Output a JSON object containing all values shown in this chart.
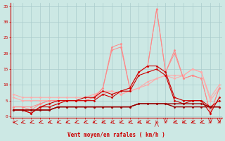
{
  "xlabel": "Vent moyen/en rafales ( km/h )",
  "bg_color": "#cce8e4",
  "grid_color": "#aacccc",
  "x_ticks": [
    0,
    1,
    2,
    3,
    4,
    5,
    6,
    7,
    8,
    9,
    10,
    11,
    12,
    13,
    14,
    15,
    16,
    17,
    18,
    19,
    20,
    21,
    22,
    23
  ],
  "y_ticks": [
    0,
    5,
    10,
    15,
    20,
    25,
    30,
    35
  ],
  "ylim": [
    -0.5,
    36
  ],
  "xlim": [
    -0.3,
    23.3
  ],
  "series": [
    {
      "x": [
        0,
        1,
        2,
        3,
        4,
        5,
        6,
        7,
        8,
        9,
        10,
        11,
        12,
        13,
        14,
        15,
        16,
        17,
        18,
        19,
        20,
        21,
        22,
        23
      ],
      "y": [
        7,
        6,
        6,
        6,
        6,
        6,
        6,
        6,
        6,
        7,
        8,
        8,
        7,
        8,
        9,
        10,
        12,
        13,
        13,
        13,
        15,
        14,
        6,
        10
      ],
      "color": "#ffaaaa",
      "lw": 0.8,
      "marker": "D",
      "ms": 1.5
    },
    {
      "x": [
        0,
        1,
        2,
        3,
        4,
        5,
        6,
        7,
        8,
        9,
        10,
        11,
        12,
        13,
        14,
        15,
        16,
        17,
        18,
        19,
        20,
        21,
        22,
        23
      ],
      "y": [
        6,
        5,
        5,
        5,
        5,
        5,
        5,
        5,
        5,
        6,
        7,
        8,
        7,
        8,
        9,
        11,
        12,
        13,
        12,
        13,
        15,
        14,
        5,
        9
      ],
      "color": "#ffaaaa",
      "lw": 0.8,
      "marker": "D",
      "ms": 1.5
    },
    {
      "x": [
        0,
        1,
        2,
        3,
        4,
        5,
        6,
        7,
        8,
        9,
        10,
        11,
        12,
        13,
        14,
        15,
        16,
        17,
        18,
        19,
        20,
        21,
        22,
        23
      ],
      "y": [
        3,
        3,
        3,
        4,
        5,
        5,
        5,
        5,
        5,
        6,
        9,
        22,
        23,
        9,
        14,
        16,
        34,
        14,
        21,
        12,
        13,
        12,
        1,
        9
      ],
      "color": "#ff8888",
      "lw": 0.7,
      "marker": "D",
      "ms": 1.5
    },
    {
      "x": [
        0,
        1,
        2,
        3,
        4,
        5,
        6,
        7,
        8,
        9,
        10,
        11,
        12,
        13,
        14,
        15,
        16,
        17,
        18,
        19,
        20,
        21,
        22,
        23
      ],
      "y": [
        3,
        3,
        2,
        4,
        5,
        5,
        5,
        5,
        5,
        6,
        9,
        21,
        22,
        9,
        14,
        16,
        34,
        14,
        20,
        12,
        13,
        12,
        1,
        9
      ],
      "color": "#ff8888",
      "lw": 0.7,
      "marker": "D",
      "ms": 1.5
    },
    {
      "x": [
        0,
        1,
        2,
        3,
        4,
        5,
        6,
        7,
        8,
        9,
        10,
        11,
        12,
        13,
        14,
        15,
        16,
        17,
        18,
        19,
        20,
        21,
        22,
        23
      ],
      "y": [
        2,
        2,
        1,
        3,
        4,
        5,
        5,
        5,
        6,
        6,
        8,
        7,
        8,
        9,
        14,
        16,
        16,
        14,
        6,
        5,
        5,
        5,
        1,
        6
      ],
      "color": "#cc0000",
      "lw": 0.8,
      "marker": "D",
      "ms": 1.5
    },
    {
      "x": [
        0,
        1,
        2,
        3,
        4,
        5,
        6,
        7,
        8,
        9,
        10,
        11,
        12,
        13,
        14,
        15,
        16,
        17,
        18,
        19,
        20,
        21,
        22,
        23
      ],
      "y": [
        2,
        2,
        1,
        3,
        3,
        4,
        5,
        5,
        5,
        5,
        7,
        6,
        8,
        8,
        13,
        14,
        15,
        13,
        5,
        4,
        5,
        5,
        3,
        5
      ],
      "color": "#cc0000",
      "lw": 0.8,
      "marker": "D",
      "ms": 1.5
    },
    {
      "x": [
        0,
        1,
        2,
        3,
        4,
        5,
        6,
        7,
        8,
        9,
        10,
        11,
        12,
        13,
        14,
        15,
        16,
        17,
        18,
        19,
        20,
        21,
        22,
        23
      ],
      "y": [
        2,
        2,
        2,
        2,
        2,
        3,
        3,
        3,
        3,
        3,
        3,
        3,
        3,
        3,
        4,
        4,
        4,
        4,
        4,
        4,
        4,
        4,
        3,
        3
      ],
      "color": "#990000",
      "lw": 1.0,
      "marker": "D",
      "ms": 1.5
    },
    {
      "x": [
        0,
        1,
        2,
        3,
        4,
        5,
        6,
        7,
        8,
        9,
        10,
        11,
        12,
        13,
        14,
        15,
        16,
        17,
        18,
        19,
        20,
        21,
        22,
        23
      ],
      "y": [
        2,
        2,
        2,
        2,
        2,
        3,
        3,
        3,
        3,
        3,
        3,
        3,
        3,
        3,
        4,
        4,
        4,
        4,
        3,
        3,
        3,
        3,
        3,
        3
      ],
      "color": "#990000",
      "lw": 1.0,
      "marker": "D",
      "ms": 1.5
    }
  ],
  "arrow_angles": [
    180,
    220,
    220,
    220,
    220,
    220,
    220,
    220,
    220,
    220,
    220,
    220,
    220,
    220,
    220,
    220,
    90,
    270,
    220,
    220,
    220,
    220,
    270,
    270
  ]
}
